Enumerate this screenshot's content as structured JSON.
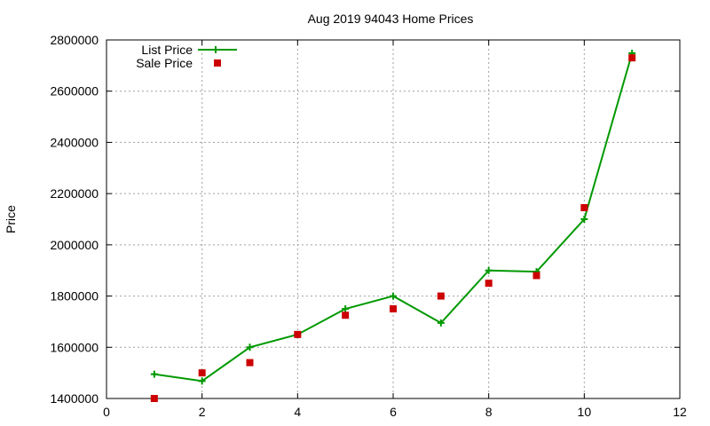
{
  "chart_data": {
    "type": "line",
    "title": "Aug 2019 94043 Home Prices",
    "xlabel": "",
    "ylabel": "Price",
    "xlim": [
      0,
      12
    ],
    "ylim": [
      1400000,
      2800000
    ],
    "x_ticks": [
      0,
      2,
      4,
      6,
      8,
      10,
      12
    ],
    "y_ticks": [
      1400000,
      1600000,
      1800000,
      2000000,
      2200000,
      2400000,
      2600000,
      2800000
    ],
    "grid": true,
    "legend_position": "top-left",
    "series": [
      {
        "name": "List Price",
        "style": "line-with-plus-markers",
        "color": "#009900",
        "x": [
          1,
          2,
          3,
          4,
          5,
          6,
          7,
          8,
          9,
          10,
          11
        ],
        "y": [
          1495000,
          1468000,
          1600000,
          1650000,
          1750000,
          1800000,
          1695000,
          1900000,
          1895000,
          2100000,
          2748000
        ]
      },
      {
        "name": "Sale Price",
        "style": "square-markers",
        "color": "#cc0000",
        "x": [
          1,
          2,
          3,
          4,
          5,
          6,
          7,
          8,
          9,
          10,
          11
        ],
        "y": [
          1400000,
          1500000,
          1540000,
          1650000,
          1725000,
          1750000,
          1800000,
          1850000,
          1880000,
          2145000,
          2730000
        ]
      }
    ]
  }
}
